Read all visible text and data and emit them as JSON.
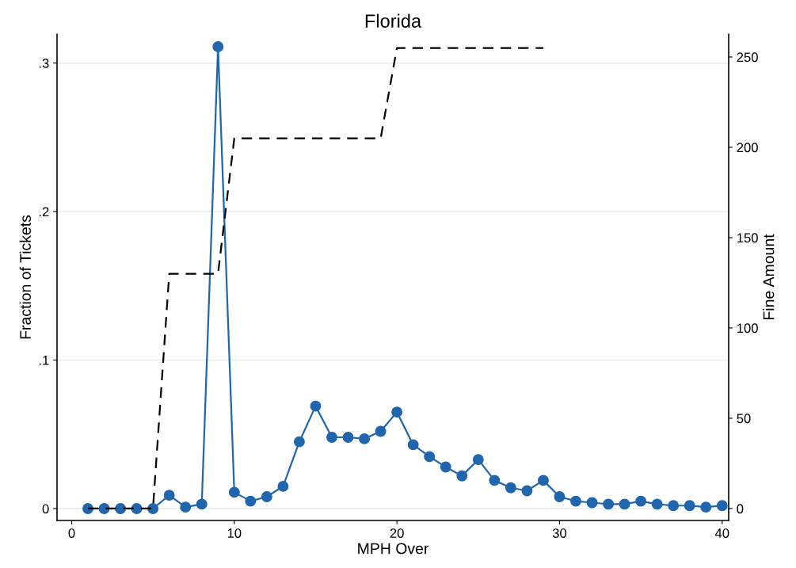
{
  "chart_data": {
    "type": "line",
    "title": "Florida",
    "xlabel": "MPH Over",
    "ylabel": "Fraction of Tickets",
    "y2label": "Fine Amount",
    "xlim": [
      -0.9,
      40.4
    ],
    "xticks": [
      0,
      10,
      20,
      30,
      40
    ],
    "ylim": [
      -0.008,
      0.3195
    ],
    "yticks": [
      {
        "value": 0,
        "label": "0"
      },
      {
        "value": 0.1,
        "label": ".1"
      },
      {
        "value": 0.2,
        "label": ".2"
      },
      {
        "value": 0.3,
        "label": ".3"
      }
    ],
    "y2lim": [
      -6.6,
      262.7
    ],
    "y2ticks": [
      0,
      50,
      100,
      150,
      200,
      250
    ],
    "grid": "y",
    "series": [
      {
        "color": "#2166ac",
        "marker": "circle",
        "line_style": "solid",
        "x": [
          1,
          2,
          3,
          4,
          5,
          6,
          7,
          8,
          9,
          10,
          11,
          12,
          13,
          14,
          15,
          16,
          17,
          18,
          19,
          20,
          21,
          22,
          23,
          24,
          25,
          26,
          27,
          28,
          29,
          30,
          31,
          32,
          33,
          34,
          35,
          36,
          37,
          38,
          39,
          40
        ],
        "values": [
          0,
          0,
          0,
          0,
          0,
          0.009,
          0.001,
          0.003,
          0.311,
          0.011,
          0.005,
          0.008,
          0.015,
          0.045,
          0.069,
          0.048,
          0.048,
          0.047,
          0.052,
          0.065,
          0.043,
          0.035,
          0.028,
          0.022,
          0.033,
          0.019,
          0.014,
          0.012,
          0.019,
          0.008,
          0.005,
          0.004,
          0.003,
          0.003,
          0.005,
          0.003,
          0.002,
          0.002,
          0.001,
          0.002
        ]
      },
      {
        "color": "#000000",
        "marker": "none",
        "line_style": "dashed",
        "axis": "y2",
        "x": [
          1,
          2,
          3,
          4,
          5,
          6,
          7,
          8,
          9,
          10,
          11,
          12,
          13,
          14,
          15,
          16,
          17,
          18,
          19,
          20,
          21,
          22,
          23,
          24,
          25,
          26,
          27,
          28,
          29
        ],
        "values": [
          0,
          0,
          0,
          0,
          0,
          130,
          130,
          130,
          130,
          205,
          205,
          205,
          205,
          205,
          205,
          205,
          205,
          205,
          205,
          255,
          255,
          255,
          255,
          255,
          255,
          255,
          255,
          255,
          255
        ]
      }
    ]
  }
}
